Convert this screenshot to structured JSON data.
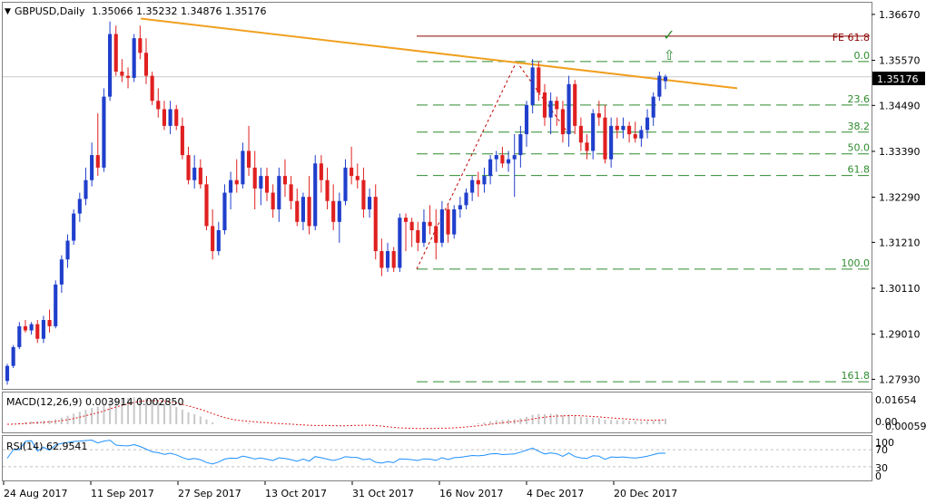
{
  "header": {
    "symbol": "GBPUSD,Daily",
    "ohlc": "1.35066 1.35232 1.34876 1.35176"
  },
  "macd": {
    "label": "MACD(12,26,9) 0.003914 0.002850",
    "axis": [
      "0.01654",
      "0.00"
    ],
    "axis_extra": "0.00059"
  },
  "rsi": {
    "label": "RSI(14) 62.9541",
    "axis": [
      "100",
      "70",
      "30",
      "0"
    ]
  },
  "current_price": "1.35176",
  "fib_labels": [
    "0.0",
    "23.6",
    "38.2",
    "50.0",
    "61.8",
    "100.0",
    "161.8"
  ],
  "fe_label": "FE 61.8",
  "annotations": {
    "check": "✓",
    "arrow": "⇧"
  },
  "colors": {
    "bull": "#1f3fcc",
    "bear": "#e02020",
    "trend": "#f0a020",
    "fib": "#2e8b2e",
    "fe": "#8b0000",
    "grid": "#c0c0c0",
    "macd_hist": "#c8c8c8",
    "macd_signal": "#e02020",
    "rsi_line": "#1e90ff"
  },
  "chart_data": {
    "type": "candlestick",
    "x_tick_labels": [
      "24 Aug 2017",
      "11 Sep 2017",
      "27 Sep 2017",
      "13 Oct 2017",
      "31 Oct 2017",
      "16 Nov 2017",
      "4 Dec 2017",
      "20 Dec 2017"
    ],
    "y_tick_labels": [
      "1.36670",
      "1.35570",
      "1.34490",
      "1.33390",
      "1.32290",
      "1.31210",
      "1.30110",
      "1.29010",
      "1.27930"
    ],
    "ylim": [
      1.277,
      1.3695
    ],
    "fib_levels": {
      "0.0": 1.3554,
      "23.6": 1.345,
      "38.2": 1.3385,
      "50.0": 1.3333,
      "61.8": 1.3281,
      "100.0": 1.3057,
      "161.8": 1.2787
    },
    "fe_61_8": 1.3615,
    "trendline": {
      "from": 1.3657,
      "to": 1.349
    },
    "candles": [
      [
        1.2789,
        1.283,
        1.278,
        1.2825
      ],
      [
        1.2825,
        1.2875,
        1.282,
        1.287
      ],
      [
        1.287,
        1.293,
        1.2865,
        1.292
      ],
      [
        1.292,
        1.2935,
        1.2905,
        1.291
      ],
      [
        1.291,
        1.293,
        1.29,
        1.2925
      ],
      [
        1.2925,
        1.2935,
        1.288,
        1.289
      ],
      [
        1.289,
        1.2945,
        1.288,
        1.2935
      ],
      [
        1.2935,
        1.296,
        1.2905,
        1.292
      ],
      [
        1.292,
        1.303,
        1.2915,
        1.302
      ],
      [
        1.302,
        1.309,
        1.3,
        1.308
      ],
      [
        1.308,
        1.314,
        1.306,
        1.3125
      ],
      [
        1.3125,
        1.32,
        1.3115,
        1.319
      ],
      [
        1.319,
        1.324,
        1.317,
        1.3225
      ],
      [
        1.3225,
        1.33,
        1.321,
        1.327
      ],
      [
        1.327,
        1.336,
        1.3255,
        1.333
      ],
      [
        1.333,
        1.343,
        1.328,
        1.33
      ],
      [
        1.33,
        1.349,
        1.329,
        1.347
      ],
      [
        1.347,
        1.365,
        1.346,
        1.362
      ],
      [
        1.362,
        1.364,
        1.352,
        1.353
      ],
      [
        1.353,
        1.356,
        1.3505,
        1.352
      ],
      [
        1.352,
        1.354,
        1.349,
        1.3515
      ],
      [
        1.3515,
        1.362,
        1.3505,
        1.361
      ],
      [
        1.361,
        1.364,
        1.356,
        1.3575
      ],
      [
        1.3575,
        1.361,
        1.35,
        1.352
      ],
      [
        1.352,
        1.353,
        1.345,
        1.346
      ],
      [
        1.346,
        1.349,
        1.342,
        1.344
      ],
      [
        1.344,
        1.346,
        1.339,
        1.34
      ],
      [
        1.34,
        1.346,
        1.338,
        1.344
      ],
      [
        1.344,
        1.345,
        1.339,
        1.34
      ],
      [
        1.34,
        1.342,
        1.332,
        1.333
      ],
      [
        1.333,
        1.335,
        1.326,
        1.327
      ],
      [
        1.327,
        1.333,
        1.325,
        1.33
      ],
      [
        1.33,
        1.332,
        1.325,
        1.326
      ],
      [
        1.326,
        1.328,
        1.315,
        1.316
      ],
      [
        1.316,
        1.32,
        1.308,
        1.31
      ],
      [
        1.31,
        1.317,
        1.309,
        1.315
      ],
      [
        1.315,
        1.326,
        1.314,
        1.324
      ],
      [
        1.324,
        1.329,
        1.32,
        1.327
      ],
      [
        1.327,
        1.332,
        1.324,
        1.326
      ],
      [
        1.326,
        1.336,
        1.325,
        1.334
      ],
      [
        1.334,
        1.34,
        1.328,
        1.33
      ],
      [
        1.33,
        1.334,
        1.32,
        1.325
      ],
      [
        1.325,
        1.33,
        1.321,
        1.328
      ],
      [
        1.328,
        1.33,
        1.322,
        1.324
      ],
      [
        1.324,
        1.326,
        1.318,
        1.32
      ],
      [
        1.32,
        1.33,
        1.317,
        1.328
      ],
      [
        1.328,
        1.332,
        1.323,
        1.326
      ],
      [
        1.326,
        1.328,
        1.32,
        1.322
      ],
      [
        1.322,
        1.325,
        1.316,
        1.317
      ],
      [
        1.317,
        1.324,
        1.315,
        1.323
      ],
      [
        1.323,
        1.328,
        1.314,
        1.316
      ],
      [
        1.316,
        1.333,
        1.315,
        1.331
      ],
      [
        1.331,
        1.333,
        1.324,
        1.327
      ],
      [
        1.327,
        1.33,
        1.32,
        1.322
      ],
      [
        1.322,
        1.326,
        1.315,
        1.317
      ],
      [
        1.317,
        1.324,
        1.312,
        1.322
      ],
      [
        1.322,
        1.332,
        1.321,
        1.33
      ],
      [
        1.33,
        1.335,
        1.326,
        1.328
      ],
      [
        1.328,
        1.331,
        1.325,
        1.327
      ],
      [
        1.327,
        1.33,
        1.318,
        1.32
      ],
      [
        1.32,
        1.325,
        1.318,
        1.323
      ],
      [
        1.323,
        1.326,
        1.308,
        1.31
      ],
      [
        1.31,
        1.313,
        1.304,
        1.306
      ],
      [
        1.306,
        1.312,
        1.305,
        1.31
      ],
      [
        1.31,
        1.311,
        1.305,
        1.306
      ],
      [
        1.306,
        1.319,
        1.305,
        1.318
      ],
      [
        1.318,
        1.319,
        1.31,
        1.317
      ],
      [
        1.317,
        1.318,
        1.311,
        1.315
      ],
      [
        1.315,
        1.317,
        1.31,
        1.312
      ],
      [
        1.312,
        1.32,
        1.311,
        1.317
      ],
      [
        1.317,
        1.321,
        1.314,
        1.316
      ],
      [
        1.316,
        1.32,
        1.308,
        1.312
      ],
      [
        1.312,
        1.322,
        1.311,
        1.32
      ],
      [
        1.32,
        1.321,
        1.312,
        1.314
      ],
      [
        1.314,
        1.321,
        1.313,
        1.32
      ],
      [
        1.32,
        1.323,
        1.318,
        1.321
      ],
      [
        1.321,
        1.325,
        1.32,
        1.324
      ],
      [
        1.324,
        1.328,
        1.322,
        1.327
      ],
      [
        1.327,
        1.329,
        1.323,
        1.326
      ],
      [
        1.326,
        1.33,
        1.324,
        1.328
      ],
      [
        1.328,
        1.333,
        1.326,
        1.332
      ],
      [
        1.332,
        1.334,
        1.329,
        1.333
      ],
      [
        1.333,
        1.335,
        1.33,
        1.331
      ],
      [
        1.331,
        1.334,
        1.329,
        1.332
      ],
      [
        1.332,
        1.338,
        1.323,
        1.333
      ],
      [
        1.333,
        1.34,
        1.33,
        1.338
      ],
      [
        1.338,
        1.346,
        1.335,
        1.345
      ],
      [
        1.345,
        1.356,
        1.343,
        1.354
      ],
      [
        1.354,
        1.3555,
        1.346,
        1.348
      ],
      [
        1.348,
        1.35,
        1.34,
        1.342
      ],
      [
        1.342,
        1.348,
        1.338,
        1.346
      ],
      [
        1.346,
        1.347,
        1.34,
        1.344
      ],
      [
        1.344,
        1.346,
        1.336,
        1.338
      ],
      [
        1.338,
        1.352,
        1.335,
        1.35
      ],
      [
        1.35,
        1.351,
        1.338,
        1.34
      ],
      [
        1.34,
        1.342,
        1.334,
        1.336
      ],
      [
        1.336,
        1.338,
        1.332,
        1.334
      ],
      [
        1.334,
        1.344,
        1.332,
        1.343
      ],
      [
        1.343,
        1.346,
        1.34,
        1.342
      ],
      [
        1.342,
        1.345,
        1.331,
        1.332
      ],
      [
        1.332,
        1.342,
        1.33,
        1.34
      ],
      [
        1.34,
        1.342,
        1.337,
        1.339
      ],
      [
        1.339,
        1.342,
        1.337,
        1.34
      ],
      [
        1.34,
        1.341,
        1.336,
        1.338
      ],
      [
        1.338,
        1.341,
        1.336,
        1.337
      ],
      [
        1.337,
        1.34,
        1.335,
        1.339
      ],
      [
        1.339,
        1.344,
        1.337,
        1.342
      ],
      [
        1.342,
        1.348,
        1.34,
        1.347
      ],
      [
        1.347,
        1.353,
        1.346,
        1.352
      ],
      [
        1.3507,
        1.3523,
        1.3488,
        1.3518
      ]
    ]
  }
}
